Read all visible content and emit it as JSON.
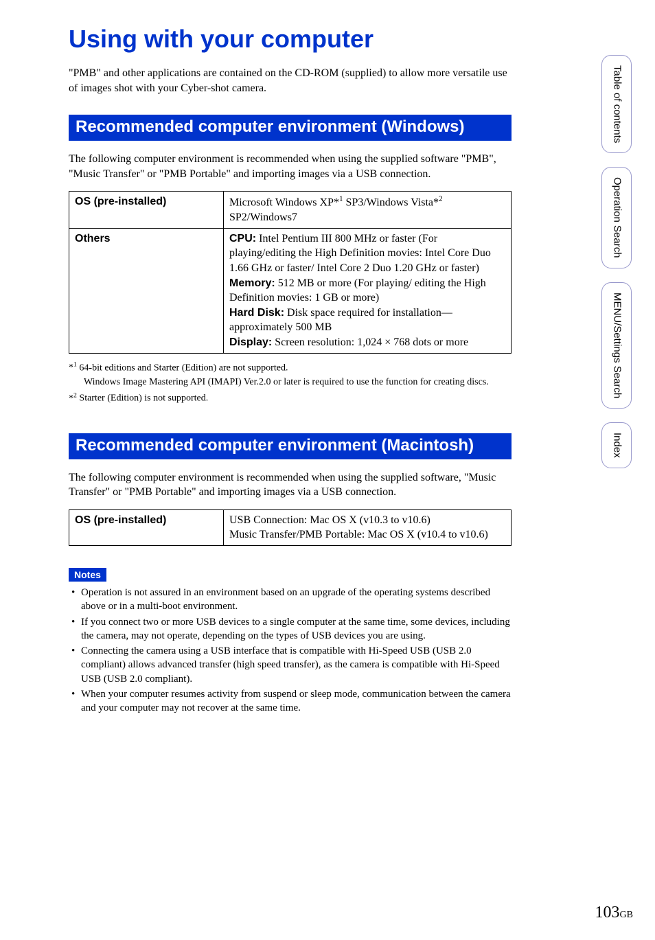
{
  "title": "Using with your computer",
  "intro": "\"PMB\" and other applications are contained on the CD-ROM (supplied) to allow more versatile use of images shot with your Cyber-shot camera.",
  "section1": {
    "heading": "Recommended computer environment (Windows)",
    "para": "The following computer environment is recommended when using the supplied software \"PMB\", \"Music Transfer\" or \"PMB Portable\" and importing images via a USB connection.",
    "table": {
      "row1": {
        "label": "OS (pre-installed)",
        "value_pre": "Microsoft Windows XP*",
        "sup1": "1",
        "value_mid": " SP3/Windows Vista*",
        "sup2": "2",
        "value_post": " SP2/Windows7"
      },
      "row2": {
        "label": "Others",
        "cpu_label": "CPU:",
        "cpu_text": " Intel Pentium III 800 MHz or faster (For playing/editing the High Definition movies: Intel Core Duo 1.66 GHz or faster/ Intel Core 2 Duo 1.20 GHz or faster)",
        "mem_label": "Memory:",
        "mem_text": " 512 MB or more (For playing/ editing the High Definition movies: 1 GB or more)",
        "hd_label": "Hard Disk:",
        "hd_text": " Disk space required for installation—approximately 500 MB",
        "disp_label": "Display:",
        "disp_text": " Screen resolution: 1,024 × 768 dots or more"
      }
    },
    "footnotes": {
      "f1_mark": "*1",
      "f1_line1": " 64-bit editions and Starter (Edition) are not supported.",
      "f1_line2": "Windows Image Mastering API (IMAPI) Ver.2.0 or later is required to use the function for creating discs.",
      "f2_mark": "*2",
      "f2_text": " Starter (Edition) is not supported."
    }
  },
  "section2": {
    "heading": "Recommended computer environment (Macintosh)",
    "para": "The following computer environment is recommended when using the supplied software, \"Music Transfer\" or \"PMB Portable\" and importing images via a USB connection.",
    "table": {
      "label": "OS (pre-installed)",
      "line1": "USB Connection: Mac OS X (v10.3 to v10.6)",
      "line2": "Music Transfer/PMB Portable: Mac OS X (v10.4 to v10.6)"
    }
  },
  "notes": {
    "heading": "Notes",
    "items": [
      "Operation is not assured in an environment based on an upgrade of the operating systems described above or in a multi-boot environment.",
      "If you connect two or more USB devices to a single computer at the same time, some devices, including the camera, may not operate, depending on the types of USB devices you are using.",
      "Connecting the camera using a USB interface that is compatible with Hi-Speed USB (USB 2.0 compliant) allows advanced transfer (high speed transfer), as the camera is compatible with Hi-Speed USB (USB 2.0 compliant).",
      "When your computer resumes activity from suspend or sleep mode, communication between the camera and your computer may not recover at the same time."
    ]
  },
  "tabs": {
    "t1": "Table of contents",
    "t2": "Operation Search",
    "t3": "MENU/Settings Search",
    "t4": "Index"
  },
  "page": {
    "num": "103",
    "suffix": "GB"
  },
  "style": {
    "accent_color": "#0033cc",
    "tab_border_color": "#9999cc",
    "background": "#ffffff"
  }
}
